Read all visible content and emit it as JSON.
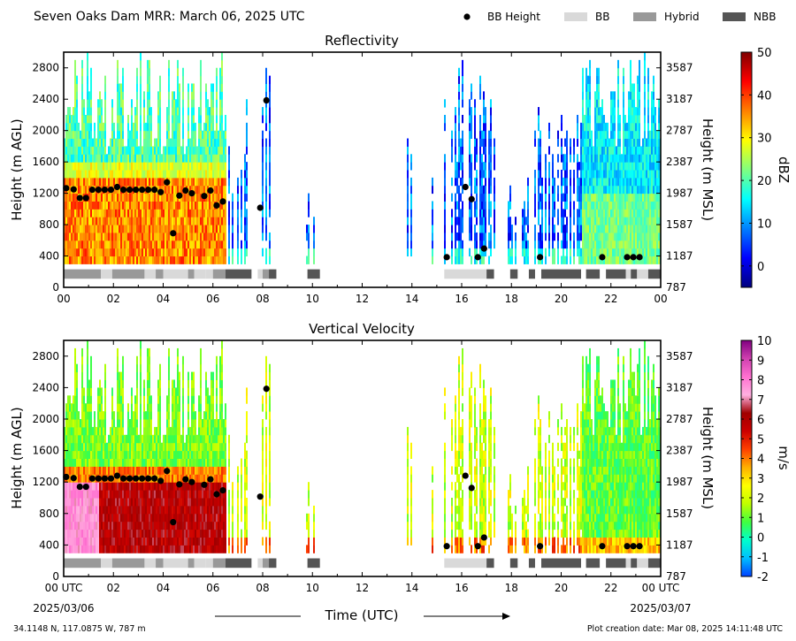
{
  "header": {
    "title": "Seven Oaks Dam MRR:  March 06, 2025 UTC",
    "legend": [
      {
        "label": "BB Height",
        "kind": "dot",
        "color": "#000000"
      },
      {
        "label": "BB",
        "kind": "box",
        "color": "#d9d9d9"
      },
      {
        "label": "Hybrid",
        "kind": "box",
        "color": "#999999"
      },
      {
        "label": "NBB",
        "kind": "box",
        "color": "#555555"
      }
    ]
  },
  "footer": {
    "location": "34.1148 N, 117.0875 W, 787 m",
    "creation": "Plot creation date: Mar 08, 2025 14:11:48 UTC",
    "start_date": "2025/03/06",
    "end_date": "2025/03/07",
    "xlabel": "Time (UTC)"
  },
  "chart_data": [
    {
      "type": "heatmap",
      "title": "Reflectivity",
      "ylabel": "Height (m AGL)",
      "ylabel_right": "Height (m MSL)",
      "colorbar_label": "dBZ",
      "colorbar_ticks": [
        "50",
        "40",
        "30",
        "20",
        "10",
        "0"
      ],
      "colorbar_range": [
        -5,
        50
      ],
      "colorbar_colors": [
        "#00007f",
        "#0000ff",
        "#0080ff",
        "#00ffff",
        "#80ff80",
        "#ffff00",
        "#ff8000",
        "#ff0000",
        "#7f0000"
      ],
      "xticks": [
        "00",
        "02",
        "04",
        "06",
        "08",
        "10",
        "12",
        "14",
        "16",
        "18",
        "20",
        "22",
        "00"
      ],
      "xlim": [
        0,
        24
      ],
      "yticks_left": [
        "0",
        "400",
        "800",
        "1200",
        "1600",
        "2000",
        "2400",
        "2800"
      ],
      "yticks_right": [
        "787",
        "1187",
        "1587",
        "1987",
        "2387",
        "2787",
        "3187",
        "3587"
      ],
      "ylim": [
        0,
        3000
      ],
      "bb_height": [
        {
          "t": 0.1,
          "h": 1265
        },
        {
          "t": 0.4,
          "h": 1250
        },
        {
          "t": 0.65,
          "h": 1140
        },
        {
          "t": 0.9,
          "h": 1140
        },
        {
          "t": 1.15,
          "h": 1245
        },
        {
          "t": 1.4,
          "h": 1245
        },
        {
          "t": 1.65,
          "h": 1245
        },
        {
          "t": 1.9,
          "h": 1245
        },
        {
          "t": 2.15,
          "h": 1280
        },
        {
          "t": 2.4,
          "h": 1245
        },
        {
          "t": 2.65,
          "h": 1245
        },
        {
          "t": 2.9,
          "h": 1245
        },
        {
          "t": 3.15,
          "h": 1245
        },
        {
          "t": 3.4,
          "h": 1245
        },
        {
          "t": 3.65,
          "h": 1245
        },
        {
          "t": 3.9,
          "h": 1215
        },
        {
          "t": 4.15,
          "h": 1340
        },
        {
          "t": 4.4,
          "h": 690
        },
        {
          "t": 4.65,
          "h": 1170
        },
        {
          "t": 4.9,
          "h": 1235
        },
        {
          "t": 5.15,
          "h": 1200
        },
        {
          "t": 5.65,
          "h": 1165
        },
        {
          "t": 5.9,
          "h": 1235
        },
        {
          "t": 6.15,
          "h": 1045
        },
        {
          "t": 6.4,
          "h": 1095
        },
        {
          "t": 7.9,
          "h": 1015
        },
        {
          "t": 8.15,
          "h": 2385
        },
        {
          "t": 15.4,
          "h": 385
        },
        {
          "t": 16.15,
          "h": 1280
        },
        {
          "t": 16.4,
          "h": 1125
        },
        {
          "t": 16.65,
          "h": 385
        },
        {
          "t": 16.9,
          "h": 495
        },
        {
          "t": 19.15,
          "h": 385
        },
        {
          "t": 21.65,
          "h": 385
        },
        {
          "t": 22.65,
          "h": 385
        },
        {
          "t": 22.9,
          "h": 385
        },
        {
          "t": 23.15,
          "h": 385
        }
      ],
      "bb_type": [
        {
          "start": 0.0,
          "end": 1.5,
          "type": "Hybrid"
        },
        {
          "start": 1.5,
          "end": 1.95,
          "type": "BB"
        },
        {
          "start": 1.95,
          "end": 3.25,
          "type": "Hybrid"
        },
        {
          "start": 3.25,
          "end": 3.7,
          "type": "BB"
        },
        {
          "start": 3.7,
          "end": 4.0,
          "type": "Hybrid"
        },
        {
          "start": 4.0,
          "end": 5.0,
          "type": "BB"
        },
        {
          "start": 5.0,
          "end": 5.25,
          "type": "Hybrid"
        },
        {
          "start": 5.25,
          "end": 5.7,
          "type": "BB"
        },
        {
          "start": 5.7,
          "end": 6.0,
          "type": "BB"
        },
        {
          "start": 6.0,
          "end": 6.5,
          "type": "Hybrid"
        },
        {
          "start": 6.5,
          "end": 7.55,
          "type": "NBB"
        },
        {
          "start": 7.8,
          "end": 8.0,
          "type": "BB"
        },
        {
          "start": 8.0,
          "end": 8.25,
          "type": "Hybrid"
        },
        {
          "start": 8.25,
          "end": 8.55,
          "type": "NBB"
        },
        {
          "start": 9.8,
          "end": 10.3,
          "type": "NBB"
        },
        {
          "start": 15.3,
          "end": 17.0,
          "type": "BB"
        },
        {
          "start": 17.0,
          "end": 17.3,
          "type": "NBB"
        },
        {
          "start": 17.95,
          "end": 18.25,
          "type": "NBB"
        },
        {
          "start": 18.7,
          "end": 18.95,
          "type": "NBB"
        },
        {
          "start": 19.2,
          "end": 20.8,
          "type": "NBB"
        },
        {
          "start": 21.0,
          "end": 21.55,
          "type": "NBB"
        },
        {
          "start": 21.8,
          "end": 22.6,
          "type": "NBB"
        },
        {
          "start": 22.6,
          "end": 22.8,
          "type": "BB"
        },
        {
          "start": 22.8,
          "end": 23.05,
          "type": "NBB"
        },
        {
          "start": 23.05,
          "end": 23.5,
          "type": "BB"
        },
        {
          "start": 23.5,
          "end": 24.0,
          "type": "NBB"
        }
      ]
    },
    {
      "type": "heatmap",
      "title": "Vertical Velocity",
      "ylabel": "Height (m AGL)",
      "ylabel_right": "Height (m MSL)",
      "colorbar_label": "m/s",
      "colorbar_ticks": [
        "10",
        "9",
        "8",
        "7",
        "6",
        "5",
        "4",
        "3",
        "2",
        "1",
        "0",
        "-1",
        "-2"
      ],
      "colorbar_range": [
        -2,
        10
      ],
      "colorbar_colors": [
        "#0040ff",
        "#00bfff",
        "#00ffcc",
        "#40ff40",
        "#c0ff00",
        "#ffff00",
        "#ffb000",
        "#ff4000",
        "#cc0000",
        "#a00000",
        "#ffb0e0",
        "#ff70d0",
        "#d040b0",
        "#800080"
      ],
      "xticks": [
        "00 UTC",
        "02",
        "04",
        "06",
        "08",
        "10",
        "12",
        "14",
        "16",
        "18",
        "20",
        "22",
        "00 UTC"
      ],
      "xlim": [
        0,
        24
      ],
      "yticks_left": [
        "0",
        "400",
        "800",
        "1200",
        "1600",
        "2000",
        "2400",
        "2800"
      ],
      "yticks_right": [
        "787",
        "1187",
        "1587",
        "1987",
        "2387",
        "2787",
        "3187",
        "3587"
      ],
      "ylim": [
        0,
        3000
      ]
    }
  ]
}
